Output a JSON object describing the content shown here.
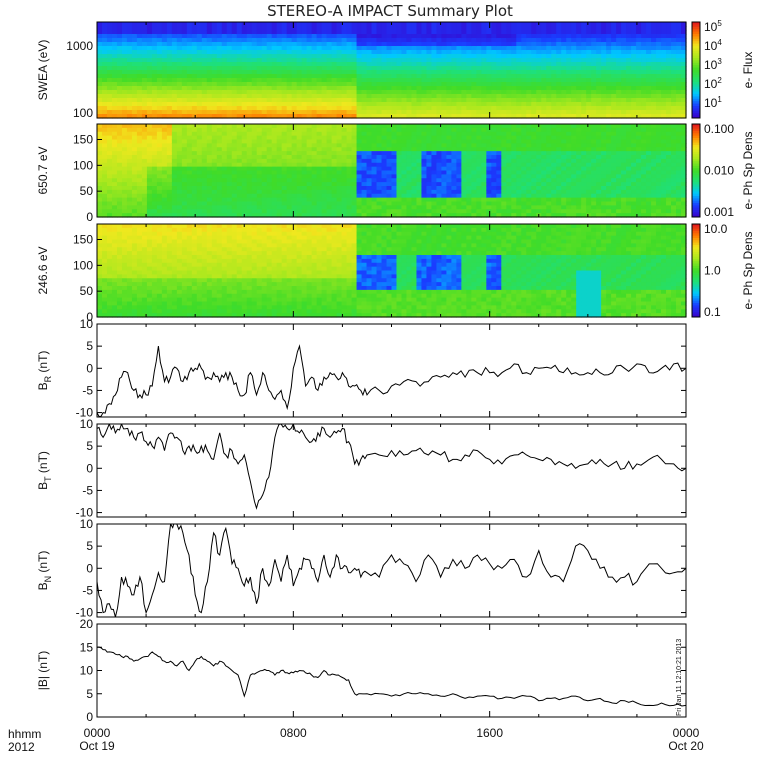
{
  "title": "STEREO-A IMPACT Summary Plot",
  "footer": {
    "hhmm": "hhmm",
    "year": "2012"
  },
  "stamp": "Fri Jan 11 12:10:21 2013",
  "x_ticks": [
    {
      "time": "0000",
      "date": "Oct 19"
    },
    {
      "time": "0800",
      "date": ""
    },
    {
      "time": "1600",
      "date": ""
    },
    {
      "time": "0000",
      "date": "Oct 20"
    }
  ],
  "colors": {
    "spectrogram_stops": [
      "#3a00c8",
      "#1a3cff",
      "#00c8ff",
      "#1ee07a",
      "#40dc28",
      "#a8e81e",
      "#f0e81e",
      "#ff7800",
      "#e0141e"
    ]
  },
  "chart_data": [
    {
      "type": "heatmap",
      "name": "swea",
      "ylabel": "SWEA (eV)",
      "yticks": [
        "1000",
        "100"
      ],
      "colorbar_label": "e- Flux",
      "colorbar_ticks": [
        "10^5",
        "10^4",
        "10^3",
        "10^2",
        "10^1"
      ],
      "x_range_hours": [
        0,
        24
      ],
      "discontinuity_hour": 10.6
    },
    {
      "type": "heatmap",
      "name": "pad650",
      "ylabel": "650.7 eV",
      "yticks": [
        "150",
        "100",
        "50",
        "0"
      ],
      "ylim": [
        0,
        180
      ],
      "colorbar_label": "e- Ph Sp Dens",
      "colorbar_ticks": [
        "0.100",
        "0.010",
        "0.001"
      ]
    },
    {
      "type": "heatmap",
      "name": "pad246",
      "ylabel": "246.6 eV",
      "yticks": [
        "150",
        "100",
        "50",
        "0"
      ],
      "ylim": [
        0,
        180
      ],
      "colorbar_label": "e- Ph Sp Dens",
      "colorbar_ticks": [
        "10.0",
        "1.0",
        "0.1"
      ]
    },
    {
      "type": "line",
      "name": "br",
      "ylabel_main": "B",
      "ylabel_sub": "R",
      "ylabel_unit": " (nT)",
      "ylim": [
        -11,
        10
      ],
      "yticks": [
        10,
        5,
        0,
        -5,
        -10
      ],
      "x_hours": [
        0,
        0.25,
        0.5,
        0.75,
        1,
        1.25,
        1.5,
        1.75,
        2,
        2.25,
        2.5,
        2.75,
        3,
        3.25,
        3.5,
        3.75,
        4,
        4.25,
        4.5,
        4.75,
        5,
        5.25,
        5.5,
        5.75,
        6,
        6.25,
        6.5,
        6.75,
        7,
        7.25,
        7.5,
        7.75,
        8,
        8.25,
        8.5,
        8.75,
        9,
        9.25,
        9.5,
        9.75,
        10,
        10.25,
        10.5,
        10.75,
        11,
        11.5,
        12,
        12.5,
        13,
        13.5,
        14,
        14.5,
        15,
        15.5,
        16,
        16.5,
        17,
        17.5,
        18,
        18.5,
        19,
        19.5,
        20,
        20.5,
        21,
        21.5,
        22,
        22.5,
        23,
        23.5,
        24
      ],
      "y": [
        -10,
        -10,
        -8,
        -6,
        -2,
        -1,
        -5,
        -6,
        -6,
        -4,
        -4,
        -3,
        -2,
        0,
        -3,
        -1,
        0,
        0,
        -2,
        -1,
        -3,
        -1,
        -2,
        -5,
        -6,
        -1,
        -6,
        -1,
        -5,
        -7,
        -5,
        -9,
        0,
        -8,
        -4,
        -2,
        -5,
        -2,
        -1,
        -2,
        -1,
        -4,
        -4,
        -5,
        -6,
        -5,
        -4,
        -3,
        -3,
        -3,
        -2,
        -1,
        -2,
        -1,
        -1,
        -1,
        1,
        -1,
        0,
        0,
        -1,
        -1,
        -1,
        -1,
        -1,
        0,
        1,
        -1,
        0,
        1,
        0
      ],
      "y_overrides": {
        "10": 5,
        "31": -9,
        "33": 5
      }
    },
    {
      "type": "line",
      "name": "bt",
      "ylabel_main": "B",
      "ylabel_sub": "T",
      "ylabel_unit": " (nT)",
      "ylim": [
        -11,
        10
      ],
      "yticks": [
        10,
        5,
        0,
        -5,
        -10
      ],
      "x_hours": [
        0,
        0.25,
        0.5,
        0.75,
        1,
        1.25,
        1.5,
        1.75,
        2,
        2.25,
        2.5,
        2.75,
        3,
        3.25,
        3.5,
        3.75,
        4,
        4.25,
        4.5,
        4.75,
        5,
        5.25,
        5.5,
        5.75,
        6,
        6.25,
        6.5,
        6.75,
        7,
        7.25,
        7.5,
        7.75,
        8,
        8.25,
        8.5,
        8.75,
        9,
        9.25,
        9.5,
        9.75,
        10,
        10.25,
        10.5,
        10.75,
        11,
        11.5,
        12,
        12.5,
        13,
        13.5,
        14,
        14.5,
        15,
        15.5,
        16,
        16.5,
        17,
        17.5,
        18,
        18.5,
        19,
        19.5,
        20,
        20.5,
        21,
        21.5,
        22,
        22.5,
        23,
        23.5,
        24
      ],
      "y": [
        9,
        7,
        10,
        8,
        10,
        9,
        7,
        8,
        6,
        5,
        7,
        4,
        8,
        7,
        4,
        5,
        4,
        5,
        4,
        2,
        8,
        3,
        4,
        1,
        3,
        -3,
        -9,
        -6,
        -2,
        7,
        10,
        9,
        10,
        8,
        7,
        6,
        8,
        9,
        7,
        8,
        9,
        6,
        1,
        2,
        3,
        3,
        4,
        3,
        4,
        3,
        3,
        2,
        3,
        4,
        2,
        1,
        3,
        3,
        2,
        2,
        1,
        0,
        1,
        2,
        1,
        0,
        1,
        2,
        2,
        1,
        0
      ],
      "y_overrides": {}
    },
    {
      "type": "line",
      "name": "bn",
      "ylabel_main": "B",
      "ylabel_sub": "N",
      "ylabel_unit": " (nT)",
      "ylim": [
        -11,
        10
      ],
      "yticks": [
        10,
        5,
        0,
        -5,
        -10
      ],
      "x_hours": [
        0,
        0.25,
        0.5,
        0.75,
        1,
        1.25,
        1.5,
        1.75,
        2,
        2.25,
        2.5,
        2.75,
        3,
        3.25,
        3.5,
        3.75,
        4,
        4.25,
        4.5,
        4.75,
        5,
        5.25,
        5.5,
        5.75,
        6,
        6.25,
        6.5,
        6.75,
        7,
        7.25,
        7.5,
        7.75,
        8,
        8.25,
        8.5,
        8.75,
        9,
        9.25,
        9.5,
        9.75,
        10,
        10.25,
        10.5,
        10.75,
        11,
        11.5,
        12,
        12.5,
        13,
        13.5,
        14,
        14.5,
        15,
        15.5,
        16,
        16.5,
        17,
        17.5,
        18,
        18.5,
        19,
        19.5,
        20,
        20.5,
        21,
        21.5,
        22,
        22.5,
        23,
        23.5,
        24
      ],
      "y": [
        -3,
        -10,
        -8,
        -11,
        -2,
        -4,
        -6,
        -2,
        -10,
        -6,
        -1,
        -3,
        10,
        10,
        8,
        3,
        -6,
        -10,
        -3,
        8,
        3,
        9,
        1,
        0,
        -4,
        -2,
        -8,
        0,
        -4,
        2,
        -3,
        3,
        -4,
        0,
        2,
        0,
        -3,
        3,
        -2,
        3,
        0,
        -1,
        0,
        -2,
        -1,
        -2,
        3,
        1,
        -3,
        3,
        -2,
        2,
        0,
        3,
        1,
        0,
        2,
        -2,
        4,
        -2,
        -3,
        5,
        4,
        0,
        -2,
        -2,
        -3,
        1,
        0,
        -1,
        0
      ],
      "y_overrides": {}
    },
    {
      "type": "line",
      "name": "bmag",
      "ylabel_main": "|B|",
      "ylabel_sub": "",
      "ylabel_unit": " (nT)",
      "ylim": [
        0,
        20
      ],
      "yticks": [
        20,
        15,
        10,
        5,
        0
      ],
      "x_hours": [
        0,
        0.25,
        0.5,
        0.75,
        1,
        1.25,
        1.5,
        1.75,
        2,
        2.25,
        2.5,
        2.75,
        3,
        3.25,
        3.5,
        3.75,
        4,
        4.25,
        4.5,
        4.75,
        5,
        5.25,
        5.5,
        5.75,
        6,
        6.25,
        6.5,
        6.75,
        7,
        7.25,
        7.5,
        7.75,
        8,
        8.25,
        8.5,
        8.75,
        9,
        9.25,
        9.5,
        9.75,
        10,
        10.25,
        10.5,
        10.75,
        11,
        11.5,
        12,
        12.5,
        13,
        13.5,
        14,
        14.5,
        15,
        15.5,
        16,
        16.5,
        17,
        17.5,
        18,
        18.5,
        19,
        19.5,
        20,
        20.5,
        21,
        21.5,
        22,
        22.5,
        23,
        23.5,
        24
      ],
      "y": [
        15,
        14.5,
        14,
        13.5,
        13,
        13,
        12,
        12.5,
        13,
        14,
        13,
        12,
        12,
        11,
        12,
        10,
        12,
        13,
        12,
        11,
        12,
        11,
        10,
        9,
        4.5,
        9,
        9.5,
        10,
        10,
        9,
        10,
        9.5,
        9.5,
        10,
        9.5,
        9,
        8.5,
        10,
        9,
        9,
        8.5,
        8,
        5,
        5,
        5,
        5,
        4.5,
        5,
        5,
        5,
        4.5,
        5,
        4,
        4.5,
        4.5,
        4,
        4,
        4.5,
        3.5,
        4,
        4,
        4.5,
        3.5,
        4,
        3,
        3.5,
        3,
        2.5,
        3,
        2.5,
        2.5
      ],
      "y_overrides": {}
    }
  ]
}
